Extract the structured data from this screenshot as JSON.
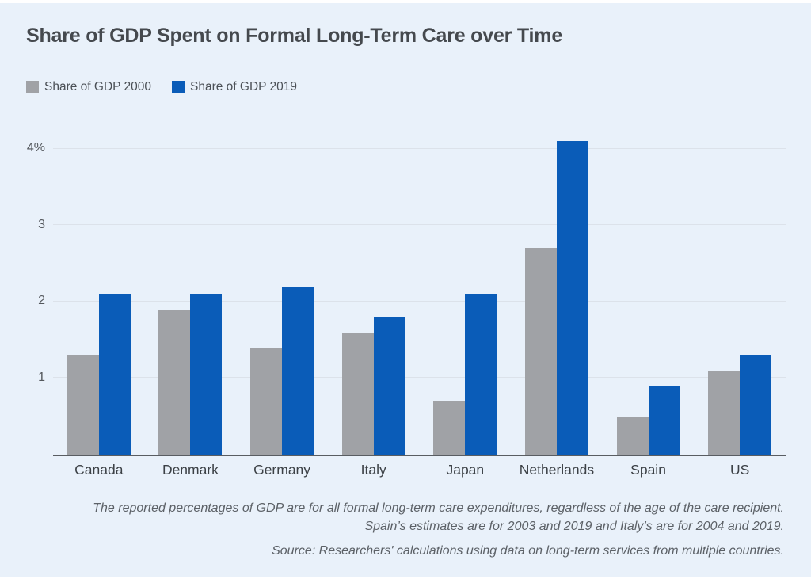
{
  "title": "Share of GDP Spent on Formal Long-Term Care over Time",
  "legend": [
    {
      "label": "Share of GDP 2000",
      "color": "#a0a2a6"
    },
    {
      "label": "Share of GDP 2019",
      "color": "#0a5cb8"
    }
  ],
  "chart_data": {
    "type": "bar",
    "title": "Share of GDP Spent on Formal Long-Term Care over Time",
    "categories": [
      "Canada",
      "Denmark",
      "Germany",
      "Italy",
      "Japan",
      "Netherlands",
      "Spain",
      "US"
    ],
    "series": [
      {
        "name": "Share of GDP 2000",
        "color": "#a0a2a6",
        "values": [
          1.3,
          1.9,
          1.4,
          1.6,
          0.7,
          2.7,
          0.5,
          1.1
        ]
      },
      {
        "name": "Share of GDP 2019",
        "color": "#0a5cb8",
        "values": [
          2.1,
          2.1,
          2.2,
          1.8,
          2.1,
          4.1,
          0.9,
          1.3
        ]
      }
    ],
    "xlabel": "",
    "ylabel": "",
    "ylim": [
      0,
      4.35
    ],
    "yticks": [
      {
        "value": 1,
        "label": "1"
      },
      {
        "value": 2,
        "label": "2"
      },
      {
        "value": 3,
        "label": "3"
      },
      {
        "value": 4,
        "label": "4%"
      }
    ],
    "grid": true,
    "legend_position": "top-left"
  },
  "notes": {
    "line1": "The reported percentages of GDP are for all formal long-term care expenditures, regardless of the age of the care recipient.",
    "line2": "Spain’s estimates are for 2003 and 2019 and Italy’s are for 2004 and 2019.",
    "line3": "Source: Researchers' calculations using data on long-term services from multiple countries."
  },
  "colors": {
    "panel_background": "#e9f1fa",
    "gridline": "#dce2ea",
    "axis_line": "#595d62",
    "title_text": "#45494e",
    "tick_text": "#54585d",
    "note_text": "#5c6167"
  }
}
